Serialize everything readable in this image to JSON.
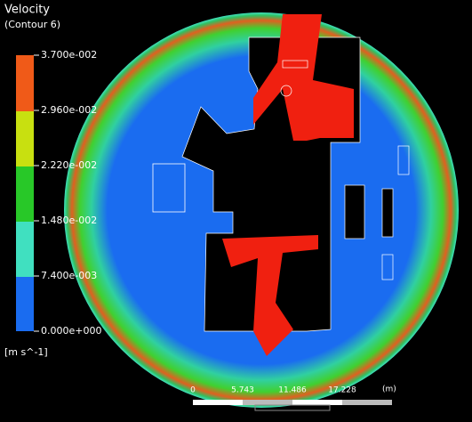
{
  "legend": {
    "title": "Velocity",
    "subtitle": "(Contour 6)",
    "levels": [
      "3.700e-002",
      "2.960e-002",
      "2.220e-002",
      "1.480e-002",
      "7.400e-003",
      "0.000e+000"
    ],
    "unit": "[m s^-1]"
  },
  "scale_bar": {
    "labels": [
      "0",
      "5.743",
      "11.486",
      "17.228"
    ],
    "unit": "(m)"
  }
}
